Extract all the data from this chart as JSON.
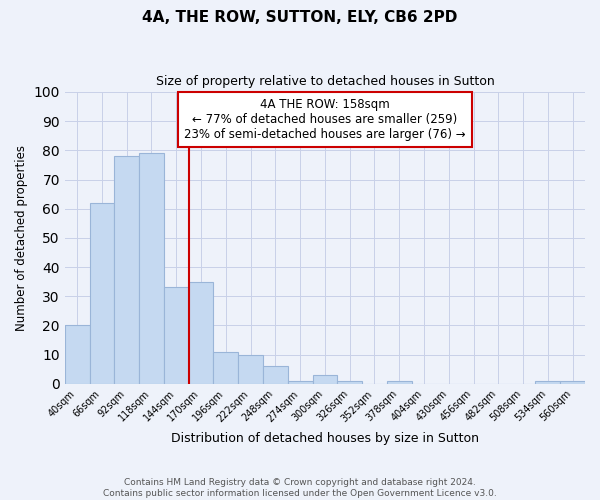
{
  "title": "4A, THE ROW, SUTTON, ELY, CB6 2PD",
  "subtitle": "Size of property relative to detached houses in Sutton",
  "xlabel": "Distribution of detached houses by size in Sutton",
  "ylabel": "Number of detached properties",
  "bar_labels": [
    "40sqm",
    "66sqm",
    "92sqm",
    "118sqm",
    "144sqm",
    "170sqm",
    "196sqm",
    "222sqm",
    "248sqm",
    "274sqm",
    "300sqm",
    "326sqm",
    "352sqm",
    "378sqm",
    "404sqm",
    "430sqm",
    "456sqm",
    "482sqm",
    "508sqm",
    "534sqm",
    "560sqm"
  ],
  "bar_heights": [
    20,
    62,
    78,
    79,
    33,
    35,
    11,
    10,
    6,
    1,
    3,
    1,
    0,
    1,
    0,
    0,
    0,
    0,
    0,
    1,
    1
  ],
  "bar_color": "#c5d9f1",
  "bar_edge_color": "#9ab5d8",
  "vline_color": "#cc0000",
  "ylim": [
    0,
    100
  ],
  "yticks": [
    0,
    10,
    20,
    30,
    40,
    50,
    60,
    70,
    80,
    90,
    100
  ],
  "annotation_line1": "4A THE ROW: 158sqm",
  "annotation_line2": "← 77% of detached houses are smaller (259)",
  "annotation_line3": "23% of semi-detached houses are larger (76) →",
  "annotation_box_color": "#ffffff",
  "annotation_box_edge": "#cc0000",
  "footer_text": "Contains HM Land Registry data © Crown copyright and database right 2024.\nContains public sector information licensed under the Open Government Licence v3.0.",
  "bg_color": "#eef2fa",
  "grid_color": "#c8d0e8"
}
